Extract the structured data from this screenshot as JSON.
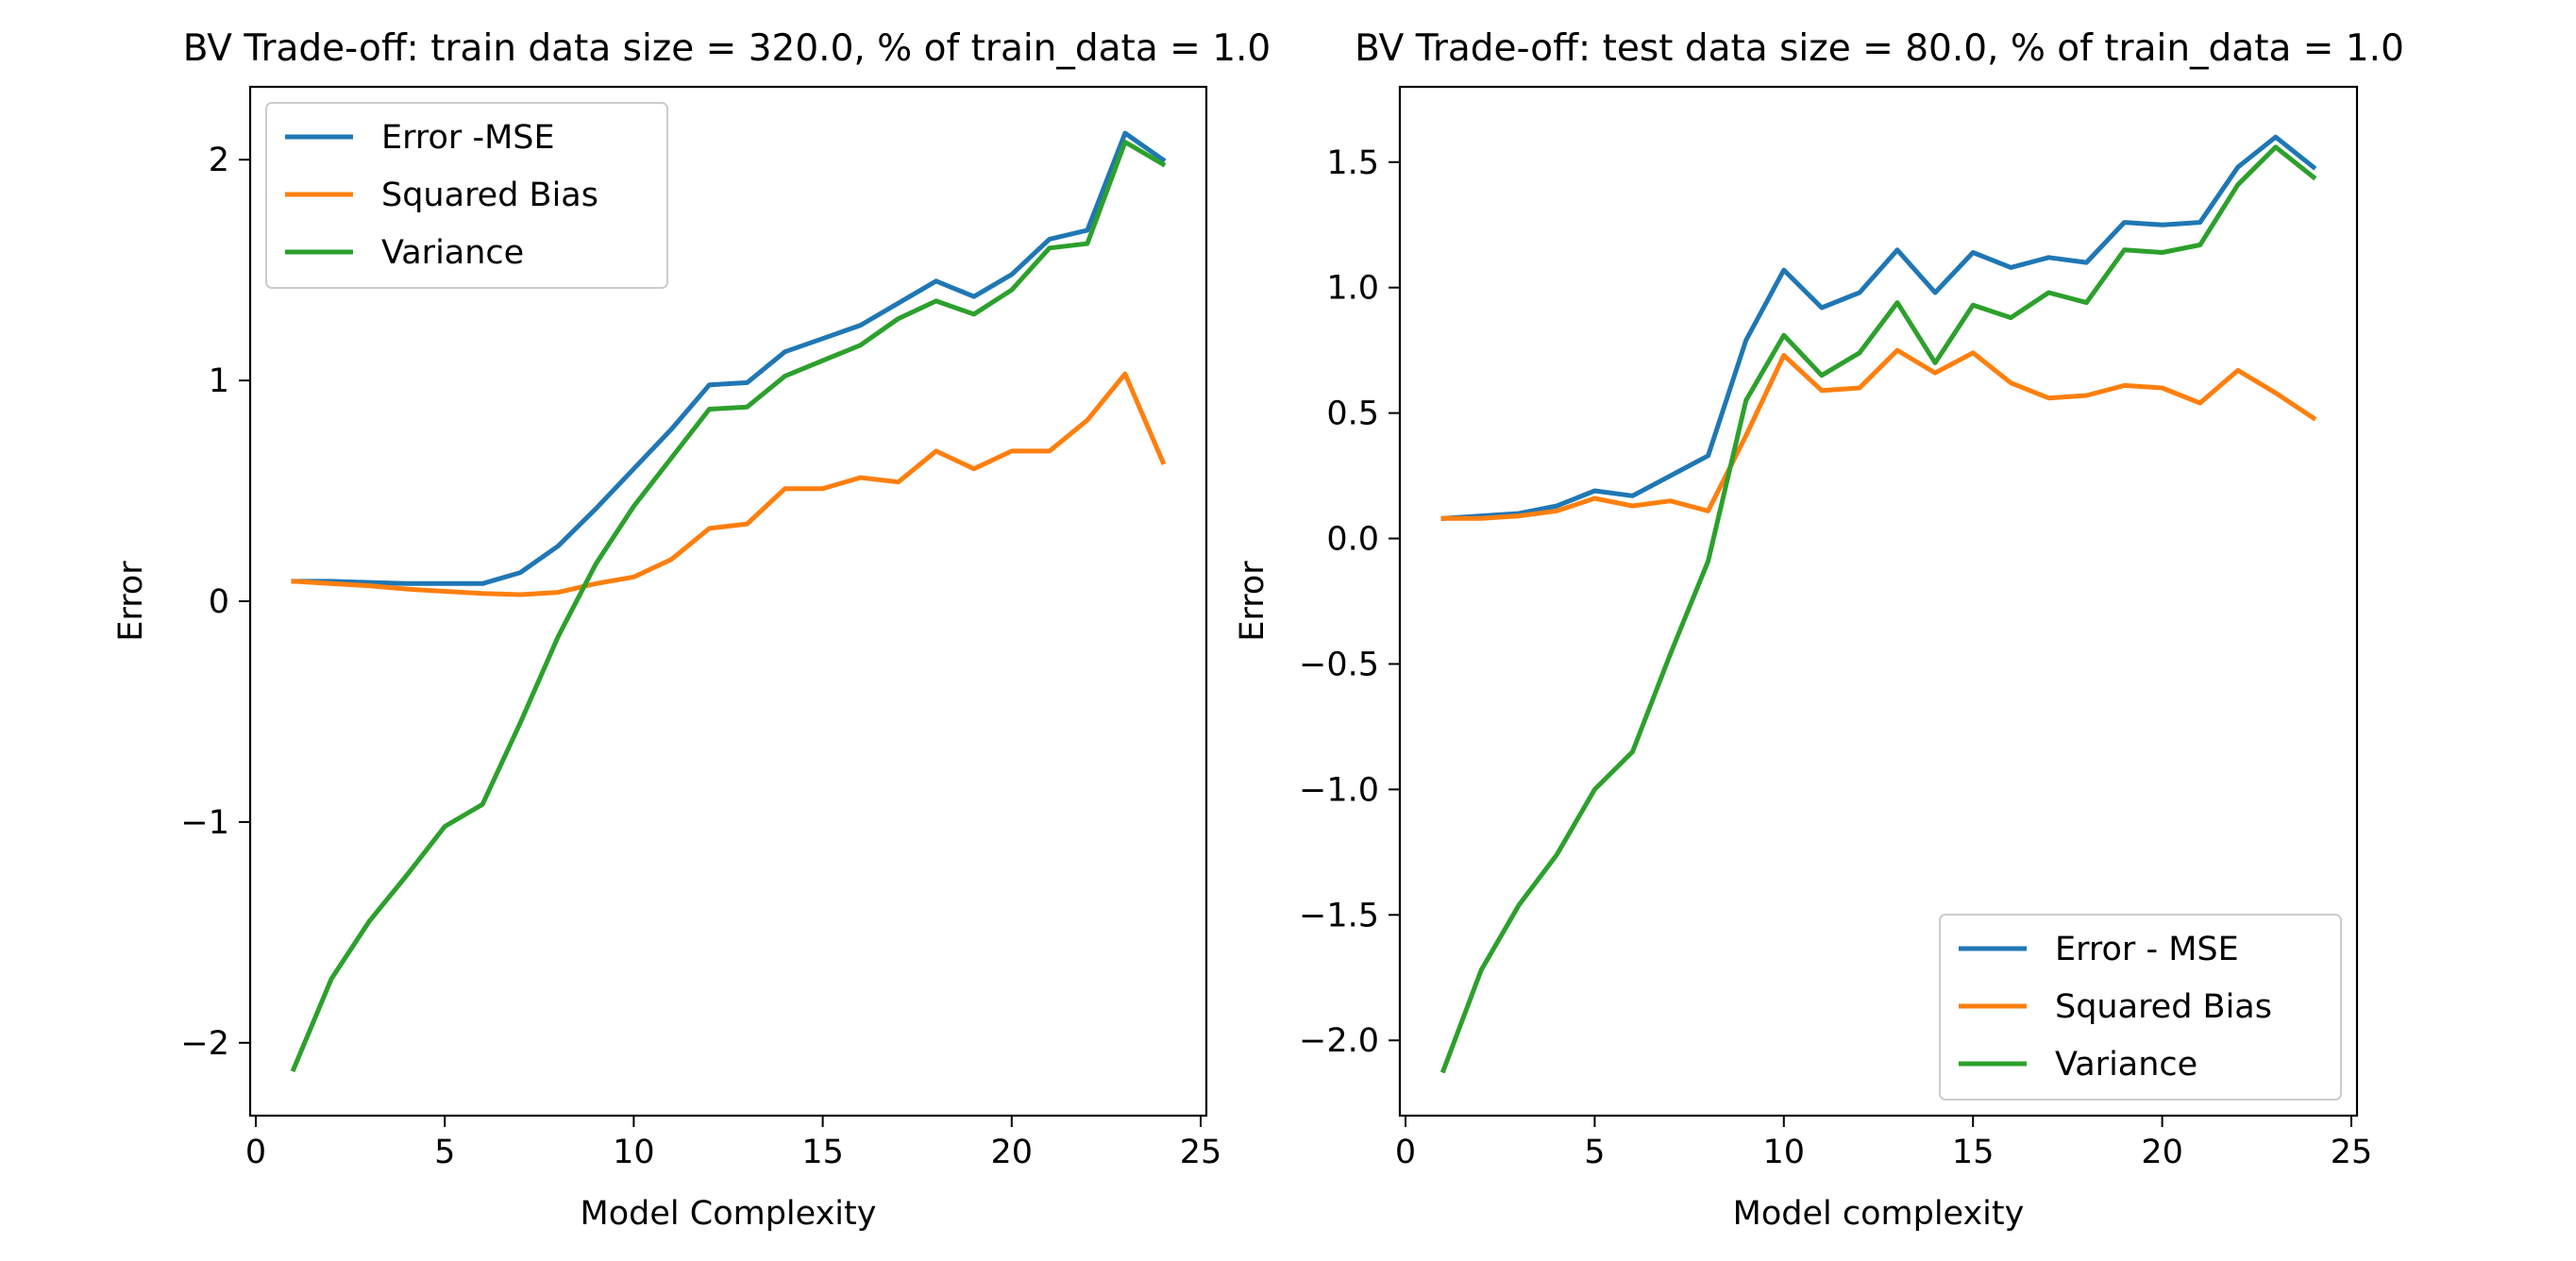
{
  "chart_data": [
    {
      "type": "line",
      "title": "BV Trade-off: train data size = 320.0, % of train_data = 1.0",
      "xlabel": "Model Complexity",
      "ylabel": "Error",
      "xlim": [
        -0.15,
        25.15
      ],
      "ylim": [
        -2.33,
        2.33
      ],
      "xticks": [
        0,
        5,
        10,
        15,
        20,
        25
      ],
      "yticks": [
        -2,
        -1,
        0,
        1,
        2
      ],
      "xtick_labels": [
        "0",
        "5",
        "10",
        "15",
        "20",
        "25"
      ],
      "ytick_labels": [
        "−2",
        "−1",
        "0",
        "1",
        "2"
      ],
      "grid": false,
      "legend_position": "upper-left",
      "x": [
        1,
        2,
        3,
        4,
        5,
        6,
        7,
        8,
        9,
        10,
        11,
        12,
        13,
        14,
        15,
        16,
        17,
        18,
        19,
        20,
        21,
        22,
        23,
        24
      ],
      "series": [
        {
          "name": "Error -MSE",
          "color": "#1f77b4",
          "values": [
            0.09,
            0.09,
            0.085,
            0.08,
            0.08,
            0.08,
            0.13,
            0.25,
            0.42,
            0.6,
            0.78,
            0.98,
            0.99,
            1.13,
            1.19,
            1.25,
            1.35,
            1.45,
            1.38,
            1.48,
            1.64,
            1.68,
            2.12,
            2.0
          ]
        },
        {
          "name": "Squared Bias",
          "color": "#ff7f0e",
          "values": [
            0.09,
            0.08,
            0.07,
            0.055,
            0.045,
            0.035,
            0.03,
            0.04,
            0.08,
            0.11,
            0.19,
            0.33,
            0.35,
            0.51,
            0.51,
            0.56,
            0.54,
            0.68,
            0.6,
            0.68,
            0.68,
            0.82,
            1.03,
            0.63
          ]
        },
        {
          "name": "Variance",
          "color": "#2ca02c",
          "values": [
            -2.12,
            -1.71,
            -1.45,
            -1.24,
            -1.02,
            -0.92,
            -0.55,
            -0.16,
            0.17,
            0.43,
            0.65,
            0.87,
            0.88,
            1.02,
            1.09,
            1.16,
            1.28,
            1.36,
            1.3,
            1.41,
            1.6,
            1.62,
            2.08,
            1.98
          ]
        }
      ]
    },
    {
      "type": "line",
      "title": "BV Trade-off: test data size = 80.0, % of train_data = 1.0",
      "xlabel": "Model complexity",
      "ylabel": "Error",
      "xlim": [
        -0.15,
        25.15
      ],
      "ylim": [
        -2.3,
        1.8
      ],
      "xticks": [
        0,
        5,
        10,
        15,
        20,
        25
      ],
      "yticks": [
        -2.0,
        -1.5,
        -1.0,
        -0.5,
        0.0,
        0.5,
        1.0,
        1.5
      ],
      "xtick_labels": [
        "0",
        "5",
        "10",
        "15",
        "20",
        "25"
      ],
      "ytick_labels": [
        "−2.0",
        "−1.5",
        "−1.0",
        "−0.5",
        "0.0",
        "0.5",
        "1.0",
        "1.5"
      ],
      "grid": false,
      "legend_position": "lower-right",
      "x": [
        1,
        2,
        3,
        4,
        5,
        6,
        7,
        8,
        9,
        10,
        11,
        12,
        13,
        14,
        15,
        16,
        17,
        18,
        19,
        20,
        21,
        22,
        23,
        24
      ],
      "series": [
        {
          "name": "Error - MSE",
          "color": "#1f77b4",
          "values": [
            0.08,
            0.09,
            0.1,
            0.13,
            0.19,
            0.17,
            0.25,
            0.33,
            0.79,
            1.07,
            0.92,
            0.98,
            1.15,
            0.98,
            1.14,
            1.08,
            1.12,
            1.1,
            1.26,
            1.25,
            1.26,
            1.48,
            1.6,
            1.48
          ]
        },
        {
          "name": "Squared Bias",
          "color": "#ff7f0e",
          "values": [
            0.08,
            0.08,
            0.09,
            0.11,
            0.16,
            0.13,
            0.15,
            0.11,
            0.41,
            0.73,
            0.59,
            0.6,
            0.75,
            0.66,
            0.74,
            0.62,
            0.56,
            0.57,
            0.61,
            0.6,
            0.54,
            0.67,
            0.58,
            0.48
          ]
        },
        {
          "name": "Variance",
          "color": "#2ca02c",
          "values": [
            -2.12,
            -1.72,
            -1.46,
            -1.26,
            -1.0,
            -0.85,
            -0.46,
            -0.09,
            0.55,
            0.81,
            0.65,
            0.74,
            0.94,
            0.7,
            0.93,
            0.88,
            0.98,
            0.94,
            1.15,
            1.14,
            1.17,
            1.41,
            1.56,
            1.44
          ]
        }
      ]
    }
  ]
}
